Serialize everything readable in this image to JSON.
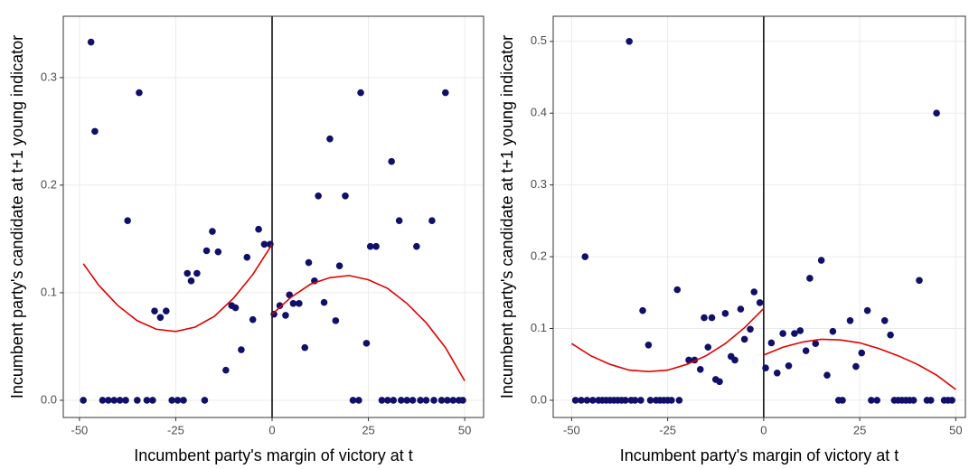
{
  "chart_data": [
    {
      "type": "scatter",
      "x_label": "Incumbent party's margin of victory at t",
      "y_label": "Incumbent party's candidate at t+1 young indicator",
      "color": "#10106b",
      "vline": 0,
      "x": [
        -49,
        -44,
        -42.5,
        -41,
        -39.5,
        -38,
        -35,
        -32.5,
        -31,
        -26,
        -24.5,
        -23,
        -17.5,
        21,
        22.5,
        28.5,
        30,
        31.5,
        33.5,
        35,
        36.5,
        38.5,
        40,
        42,
        44,
        45.5,
        47,
        48.5,
        49.5,
        -47,
        -46,
        -37.5,
        -34.5,
        -30.5,
        -29,
        -27.5,
        -22,
        -21,
        -19.5,
        -17,
        -15.5,
        -14,
        -12,
        -10.5,
        -9.5,
        -8,
        -6.5,
        -5,
        -3.5,
        -2,
        -0.5,
        0.5,
        2,
        3.5,
        4.5,
        5.5,
        7,
        8.5,
        9.5,
        11,
        12,
        13.5,
        15,
        16.5,
        17.5,
        19,
        23,
        24.5,
        25.5,
        27,
        31,
        33,
        37.5,
        41.5,
        45
      ],
      "values": [
        0,
        0,
        0,
        0,
        0,
        0,
        0,
        0,
        0,
        0,
        0,
        0,
        0,
        0,
        0,
        0,
        0,
        0,
        0,
        0,
        0,
        0,
        0,
        0,
        0,
        0,
        0,
        0,
        0,
        0.333,
        0.25,
        0.167,
        0.286,
        0.083,
        0.077,
        0.083,
        0.118,
        0.111,
        0.118,
        0.139,
        0.157,
        0.138,
        0.028,
        0.088,
        0.086,
        0.047,
        0.133,
        0.075,
        0.159,
        0.145,
        0.145,
        0.08,
        0.088,
        0.079,
        0.098,
        0.09,
        0.09,
        0.049,
        0.128,
        0.111,
        0.19,
        0.091,
        0.243,
        0.074,
        0.125,
        0.19,
        0.286,
        0.053,
        0.143,
        0.143,
        0.222,
        0.167,
        0.143,
        0.167,
        0.286
      ],
      "fit": [
        {
          "color": "#e00000",
          "x": [
            -49,
            -45,
            -40,
            -35,
            -30,
            -25,
            -20,
            -15,
            -10,
            -5,
            0
          ],
          "values": [
            0.127,
            0.107,
            0.088,
            0.074,
            0.066,
            0.064,
            0.068,
            0.078,
            0.095,
            0.117,
            0.145
          ]
        },
        {
          "color": "#e00000",
          "x": [
            0,
            5,
            10,
            15,
            20,
            25,
            30,
            35,
            40,
            45,
            50
          ],
          "values": [
            0.08,
            0.096,
            0.108,
            0.114,
            0.116,
            0.112,
            0.104,
            0.09,
            0.072,
            0.049,
            0.018
          ]
        }
      ],
      "xlim": [
        -54.2,
        54.9
      ],
      "ylim": [
        -0.016,
        0.357
      ],
      "xticks": [
        -50,
        -25,
        0,
        25,
        50
      ],
      "yticks": [
        {
          "value": 0,
          "label": "0.0"
        },
        0.1,
        0.2,
        0.3
      ],
      "grid": true
    },
    {
      "type": "scatter",
      "x_label": "Incumbent party's margin of victory at t",
      "y_label": "Incumbent party's candidate at t+1 young indicator",
      "color": "#10106b",
      "vline": 0,
      "x": [
        -49,
        -47.5,
        -46,
        -44.5,
        -43,
        -42,
        -41,
        -40,
        -39,
        -38,
        -37,
        -36,
        -34.5,
        -33.5,
        -32,
        -29.5,
        -28,
        -27,
        -26,
        -25,
        -24,
        -22,
        19.5,
        20.5,
        28,
        29.5,
        34,
        35,
        36,
        37,
        38,
        39,
        42.5,
        43.5,
        47,
        48,
        49,
        -46.5,
        -35,
        -31.5,
        -30,
        -22.5,
        -19.5,
        -18,
        -16.5,
        -15.5,
        -14.5,
        -13.5,
        -12.5,
        -11.5,
        -10,
        -8.5,
        -7.5,
        -6,
        -5,
        -3.5,
        -2.5,
        -1,
        0.5,
        2,
        3.5,
        5,
        6.5,
        8,
        9.5,
        11,
        12,
        13.5,
        15,
        16.5,
        18,
        22.5,
        24,
        25.5,
        27,
        31.5,
        33,
        40.5,
        45
      ],
      "values": [
        0,
        0,
        0,
        0,
        0,
        0,
        0,
        0,
        0,
        0,
        0,
        0,
        0,
        0,
        0,
        0,
        0,
        0,
        0,
        0,
        0,
        0,
        0,
        0,
        0,
        0,
        0,
        0,
        0,
        0,
        0,
        0,
        0,
        0,
        0,
        0,
        0,
        0.2,
        0.5,
        0.125,
        0.077,
        0.154,
        0.056,
        0.056,
        0.043,
        0.115,
        0.074,
        0.115,
        0.029,
        0.026,
        0.121,
        0.061,
        0.056,
        0.127,
        0.085,
        0.099,
        0.151,
        0.136,
        0.045,
        0.08,
        0.038,
        0.093,
        0.048,
        0.093,
        0.097,
        0.069,
        0.17,
        0.079,
        0.195,
        0.035,
        0.096,
        0.111,
        0.047,
        0.066,
        0.125,
        0.111,
        0.091,
        0.167,
        0.4
      ],
      "fit": [
        {
          "color": "#e00000",
          "x": [
            -50,
            -45,
            -40,
            -35,
            -30,
            -25,
            -20,
            -15,
            -10,
            -5,
            0
          ],
          "values": [
            0.079,
            0.062,
            0.05,
            0.042,
            0.04,
            0.042,
            0.05,
            0.062,
            0.079,
            0.101,
            0.128
          ]
        },
        {
          "color": "#e00000",
          "x": [
            0,
            5,
            10,
            15,
            20,
            25,
            30,
            35,
            40,
            45,
            50
          ],
          "values": [
            0.063,
            0.074,
            0.081,
            0.085,
            0.084,
            0.08,
            0.072,
            0.062,
            0.05,
            0.035,
            0.015
          ]
        }
      ],
      "xlim": [
        -54.8,
        52.5
      ],
      "ylim": [
        -0.024,
        0.535
      ],
      "xticks": [
        -50,
        -25,
        0,
        25,
        50
      ],
      "yticks": [
        {
          "value": 0,
          "label": "0.0"
        },
        0.1,
        0.2,
        0.3,
        0.4,
        0.5
      ],
      "grid": true
    }
  ]
}
